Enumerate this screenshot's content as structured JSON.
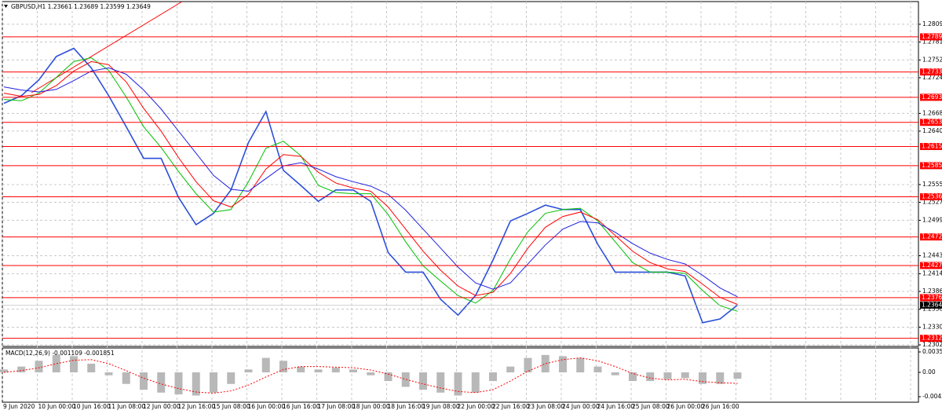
{
  "chart_data": [
    {
      "type": "line",
      "title": "GBPUSD,H1  1.23661 1.23689 1.23599 1.23649",
      "categories": [
        "9 Jun 2020",
        null,
        "10 Jun 00:00",
        null,
        "10 Jun 16:00",
        null,
        "11 Jun 08:00",
        null,
        "12 Jun 00:00",
        null,
        "12 Jun 16:00",
        null,
        "15 Jun 08:00",
        null,
        "16 Jun 00:00",
        null,
        "16 Jun 16:00",
        null,
        "17 Jun 08:00",
        null,
        "18 Jun 00:00",
        null,
        "18 Jun 16:00",
        null,
        "19 Jun 08:00",
        null,
        "22 Jun 00:00",
        null,
        "22 Jun 16:00",
        null,
        "23 Jun 08:00",
        null,
        "24 Jun 00:00",
        null,
        "24 Jun 16:00",
        null,
        "25 Jun 08:00",
        null,
        "26 Jun 00:00",
        null,
        "26 Jun 16:00",
        null,
        null
      ],
      "series": [
        {
          "color": "#2b4fd8",
          "width": 1.6,
          "values": [
            1.2684,
            1.2696,
            1.2721,
            1.2758,
            1.2771,
            1.274,
            1.2696,
            1.2647,
            1.2597,
            1.2597,
            1.2535,
            1.2492,
            1.251,
            1.2547,
            1.2622,
            1.2671,
            1.2578,
            1.2554,
            1.2529,
            1.2547,
            1.2547,
            1.2529,
            1.2448,
            1.2417,
            1.2417,
            1.2374,
            1.2349,
            1.238,
            1.2436,
            1.2498,
            1.251,
            1.2523,
            1.2516,
            1.2516,
            1.2461,
            1.2417,
            1.2417,
            1.2417,
            1.2417,
            1.2411,
            1.2337,
            1.2343,
            1.2365
          ]
        },
        {
          "color": "#00c000",
          "width": 1,
          "values": [
            1.269,
            1.2688,
            1.27,
            1.2725,
            1.275,
            1.2756,
            1.2736,
            1.2694,
            1.2647,
            1.2614,
            1.2576,
            1.2541,
            1.2512,
            1.2516,
            1.256,
            1.2613,
            1.2624,
            1.2601,
            1.2554,
            1.2543,
            1.2541,
            1.2541,
            1.2508,
            1.2465,
            1.2427,
            1.2403,
            1.238,
            1.2368,
            1.2388,
            1.2438,
            1.2481,
            1.251,
            1.2516,
            1.2518,
            1.2498,
            1.2465,
            1.2432,
            1.2417,
            1.2417,
            1.2415,
            1.2388,
            1.2364,
            1.2355
          ]
        },
        {
          "color": "#ff0000",
          "width": 1,
          "values": [
            1.27,
            1.2695,
            1.2698,
            1.2712,
            1.2735,
            1.275,
            1.2745,
            1.2718,
            1.2676,
            1.264,
            1.2598,
            1.256,
            1.253,
            1.252,
            1.254,
            1.258,
            1.2603,
            1.26,
            1.2575,
            1.2558,
            1.255,
            1.2545,
            1.252,
            1.2485,
            1.245,
            1.242,
            1.2395,
            1.238,
            1.2385,
            1.2415,
            1.2455,
            1.2488,
            1.2505,
            1.2512,
            1.25,
            1.2475,
            1.245,
            1.2432,
            1.2422,
            1.2418,
            1.2398,
            1.2377,
            1.2366
          ]
        },
        {
          "color": "#2020e0",
          "width": 1,
          "values": [
            1.271,
            1.2705,
            1.2702,
            1.2706,
            1.272,
            1.2735,
            1.274,
            1.273,
            1.2705,
            1.2675,
            1.264,
            1.2605,
            1.257,
            1.2548,
            1.2545,
            1.2565,
            1.2585,
            1.259,
            1.258,
            1.2568,
            1.256,
            1.2553,
            1.254,
            1.2515,
            1.2485,
            1.2455,
            1.2425,
            1.24,
            1.239,
            1.24,
            1.243,
            1.246,
            1.2485,
            1.2497,
            1.2495,
            1.248,
            1.2462,
            1.2447,
            1.2437,
            1.243,
            1.2412,
            1.2392,
            1.2378
          ]
        }
      ],
      "levels": [
        1.27891,
        1.27336,
        1.26935,
        1.26539,
        1.26157,
        1.25854,
        1.25362,
        1.24727,
        1.24275,
        1.23767,
        1.23124
      ],
      "level_color": "#ff0000",
      "last_price": 1.23649,
      "ylim": [
        1.22995,
        1.28449
      ],
      "yticks": [
        {
          "value": 1.2809,
          "label": "1.28090"
        },
        {
          "value": 1.2781,
          "label": "1.27810"
        },
        1.27525,
        1.27245,
        {
          "value": 1.2668,
          "label": "1.26680"
        },
        {
          "value": 1.264,
          "label": "1.26400"
        },
        1.25555,
        1.25275,
        {
          "value": 1.2499,
          "label": "1.24990"
        },
        {
          "value": 1.2443,
          "label": "1.24430"
        },
        1.24145,
        1.23865,
        1.23585,
        {
          "value": 1.233,
          "label": "1.23300"
        },
        {
          "value": 1.2302,
          "label": "1.23020"
        }
      ],
      "grid": true
    },
    {
      "type": "macd",
      "title": "MACD(12,26,9) -0.001109 -0.001851",
      "series": [
        {
          "color": "#b8b8b8",
          "values": [
            0.0005,
            0.001,
            0.002,
            0.003,
            0.0028,
            0.0015,
            -0.0005,
            -0.002,
            -0.003,
            -0.0035,
            -0.0038,
            -0.004,
            -0.0035,
            -0.002,
            0.0005,
            0.0025,
            0.002,
            0.001,
            0.0005,
            0.0008,
            0.0005,
            -0.0005,
            -0.0015,
            -0.0025,
            -0.003,
            -0.0035,
            -0.004,
            -0.0035,
            -0.0015,
            0.001,
            0.0025,
            0.003,
            0.0028,
            0.0025,
            0.001,
            -0.0005,
            -0.0015,
            -0.0015,
            -0.0012,
            -0.001,
            -0.002,
            -0.002,
            -0.0011
          ]
        },
        {
          "color": "#ff0000",
          "values": [
            0.0,
            0.0003,
            0.0008,
            0.0015,
            0.0021,
            0.0022,
            0.0015,
            0.0003,
            -0.001,
            -0.002,
            -0.0028,
            -0.0034,
            -0.0036,
            -0.0032,
            -0.0022,
            -0.0008,
            0.0005,
            0.001,
            0.001,
            0.0009,
            0.0008,
            0.0004,
            -0.0003,
            -0.0012,
            -0.002,
            -0.0027,
            -0.0033,
            -0.0035,
            -0.003,
            -0.0015,
            0.0002,
            0.0015,
            0.0022,
            0.0025,
            0.002,
            0.001,
            -0.0002,
            -0.001,
            -0.0013,
            -0.0012,
            -0.0016,
            -0.0018,
            -0.0019
          ]
        }
      ],
      "ylim": [
        -0.00516,
        0.00421
      ],
      "yticks": [
        0.003532,
        {
          "value": 0,
          "label": "0.00"
        },
        -0.004211
      ]
    }
  ]
}
